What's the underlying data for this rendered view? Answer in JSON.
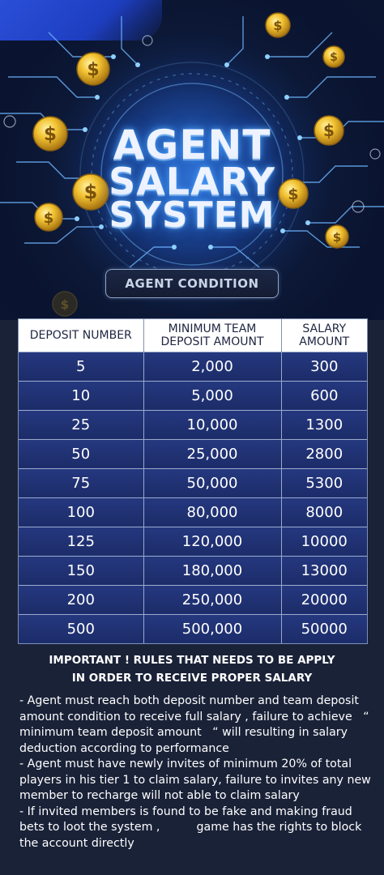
{
  "header": {
    "title_line1": "AGENT",
    "title_line2": "SALARY",
    "title_line3": "SYSTEM",
    "banner": "AGENT CONDITION"
  },
  "table": {
    "headers": [
      "DEPOSIT NUMBER",
      "MINIMUM TEAM\nDEPOSIT AMOUNT",
      "SALARY\nAMOUNT"
    ],
    "rows": [
      [
        "5",
        "2,000",
        "300"
      ],
      [
        "10",
        "5,000",
        "600"
      ],
      [
        "25",
        "10,000",
        "1300"
      ],
      [
        "50",
        "25,000",
        "2800"
      ],
      [
        "75",
        "50,000",
        "5300"
      ],
      [
        "100",
        "80,000",
        "8000"
      ],
      [
        "125",
        "120,000",
        "10000"
      ],
      [
        "150",
        "180,000",
        "13000"
      ],
      [
        "200",
        "250,000",
        "20000"
      ],
      [
        "500",
        "500,000",
        "50000"
      ]
    ]
  },
  "important": {
    "line1": "IMPORTANT ! RULES THAT NEEDS TO BE APPLY",
    "line2": "IN ORDER TO RECEIVE PROPER SALARY"
  },
  "rules": [
    "- Agent must reach both deposit number and team deposit amount condition to receive full salary , failure to achieve   “ minimum team deposit amount   “ will resulting in salary deduction according to performance",
    "- Agent must have newly invites of minimum 20% of total players in his tier 1 to claim salary, failure to invites any new member to recharge will not able to claim salary",
    "- If invited members is found to be fake and making fraud bets to loot the system ,          game has the rights to block the account directly"
  ],
  "colors": {
    "background": "#1a2238",
    "table_row": "#23357a",
    "header_bg": "#ffffff",
    "coin": "#f2c230"
  },
  "icons": [
    "dollar-coin-icon",
    "circuit-lines-decoration"
  ]
}
